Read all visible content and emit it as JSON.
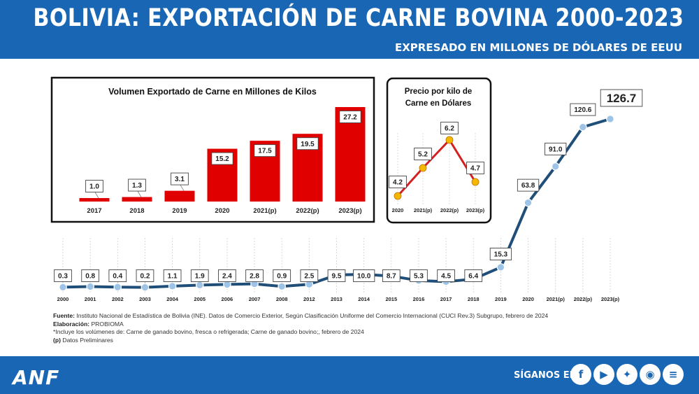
{
  "header": {
    "title": "BOLIVIA: EXPORTACIÓN DE CARNE BOVINA 2000-2023",
    "subtitle": "EXPRESADO EN MILLONES DE DÓLARES DE EEUU"
  },
  "notes": {
    "fuente_label": "Fuente:",
    "fuente_text": " Instituto Nacional de Estadística de Bolivia (INE). Datos de Comercio Exterior, Según Clasificación Uniforme del Comercio Internacional (CUCI Rev.3) Subgrupo, febrero de 2024",
    "elaboracion_label": "Elaboración:",
    "elaboracion_text": " PROBIOMA",
    "incluye": "*Incluye los volúmenes de: Carne de ganado bovino, fresca o refrigerada; Carne de ganado bovino;, febrero de 2024",
    "p_label": "(p)",
    "p_text": " Datos Preliminares"
  },
  "footer": {
    "logo": "ANF",
    "follow_label": "SÍGANOS EN:",
    "social_icons": [
      "facebook-icon",
      "youtube-icon",
      "twitter-icon",
      "instagram-icon",
      "spotify-icon"
    ]
  },
  "colors": {
    "brand_blue": "#1967b4",
    "line": "#1f4e79",
    "marker": "#9dc3e6",
    "bar_red": "#e00000",
    "price_line": "#d42020",
    "price_marker": "#f5b800"
  },
  "chart_data": [
    {
      "type": "line",
      "title": "",
      "categories": [
        "2000",
        "2001",
        "2002",
        "2003",
        "2004",
        "2005",
        "2006",
        "2007",
        "2008",
        "2012",
        "2013",
        "2014",
        "2015",
        "2016",
        "2017",
        "2018",
        "2019",
        "2020",
        "2021(p)",
        "2022(p)",
        "2023(p)"
      ],
      "values": [
        0.3,
        0.8,
        0.4,
        0.2,
        1.1,
        1.9,
        2.4,
        2.8,
        0.9,
        2.5,
        9.5,
        10.0,
        8.7,
        5.3,
        4.5,
        6.4,
        15.3,
        63.8,
        91.0,
        120.6,
        126.7
      ],
      "labels": [
        "0.3",
        "0.8",
        "0.4",
        "0.2",
        "1.1",
        "1.9",
        "2.4",
        "2.8",
        "0.9",
        "2.5",
        "9.5",
        "10.0",
        "8.7",
        "5.3",
        "4.5",
        "6.4",
        "15.3",
        "63.8",
        "91.0",
        "120.6",
        "126.7"
      ]
    },
    {
      "type": "bar",
      "title": "Volumen Exportado de Carne  en Millones de Kilos",
      "categories": [
        "2017",
        "2018",
        "2019",
        "2020",
        "2021(p)",
        "2022(p)",
        "2023(p)"
      ],
      "values": [
        1.0,
        1.3,
        3.1,
        15.2,
        17.5,
        19.5,
        27.2
      ],
      "labels": [
        "1.0",
        "1.3",
        "3.1",
        "15.2",
        "17.5",
        "19.5",
        "27.2"
      ]
    },
    {
      "type": "line",
      "title": "Precio por kilo de Carne en Dólares",
      "title_lines": [
        "Precio por kilo de",
        "Carne en Dólares"
      ],
      "categories": [
        "2020",
        "2021(p)",
        "2022(p)",
        "2023(p)"
      ],
      "values": [
        4.2,
        5.2,
        6.2,
        4.7
      ],
      "labels": [
        "4.2",
        "5.2",
        "6.2",
        "4.7"
      ]
    }
  ]
}
